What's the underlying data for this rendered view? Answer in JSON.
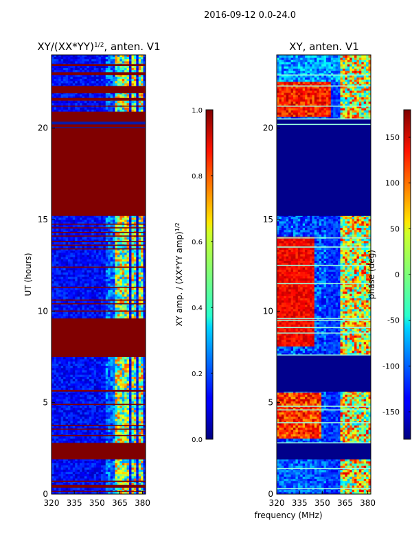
{
  "suptitle": "2016-09-12 0.0-24.0",
  "shared_xlabel": "frequency (MHz)",
  "colors": {
    "saturated": "#800000",
    "background_low": "#00008b",
    "blue": "#0000ff",
    "cyan": "#00e5ff",
    "yellow": "#ffff00",
    "red": "#ff0000"
  },
  "chart_data": [
    {
      "type": "heatmap",
      "title_main": "XY/(XX*YY)",
      "title_sup": "1/2",
      "title_tail": ", anten. V1",
      "xlabel": "",
      "ylabel": "UT (hours)",
      "xlim": [
        320,
        382
      ],
      "ylim": [
        0,
        24
      ],
      "xticks": [
        "320",
        "335",
        "350",
        "365",
        "380"
      ],
      "xtick_values": [
        320,
        335,
        350,
        365,
        380
      ],
      "yticks": [
        "0",
        "5",
        "10",
        "15",
        "20"
      ],
      "ytick_values": [
        0,
        5,
        10,
        15,
        20
      ],
      "colorbar": {
        "label_main": "XY amp. / (XX*YY amp)",
        "label_sup": "1/2",
        "range": [
          0.0,
          1.0
        ],
        "ticks": [
          "0.0",
          "0.2",
          "0.4",
          "0.6",
          "0.8",
          "1.0"
        ],
        "tick_values": [
          0.0,
          0.2,
          0.4,
          0.6,
          0.8,
          1.0
        ]
      },
      "saturated_ut_bands": [
        [
          0.35,
          0.5
        ],
        [
          1.9,
          2.8
        ],
        [
          5.6,
          5.7
        ],
        [
          7.5,
          7.6
        ],
        [
          7.6,
          9.6
        ],
        [
          15.2,
          20.0
        ],
        [
          20.05,
          20.2
        ],
        [
          20.35,
          20.9
        ],
        [
          21.5,
          21.65
        ],
        [
          21.9,
          22.3
        ],
        [
          22.9,
          23.05
        ],
        [
          23.4,
          23.5
        ]
      ],
      "thin_red_lines_ut": [
        0.15,
        0.7,
        3.2,
        3.55,
        3.75,
        4.9,
        7.85,
        8.4,
        8.7,
        9.25,
        10.0,
        10.4,
        10.6,
        11.3,
        12.4,
        13.4,
        13.6,
        13.8,
        14.1,
        14.3,
        14.55,
        14.75,
        21.2
      ],
      "bright_freq_columns_mhz": [
        [
          362,
          366
        ],
        [
          367,
          371
        ],
        [
          372,
          376
        ],
        [
          377,
          381
        ]
      ],
      "active_ut_ranges": [
        [
          0,
          0.35
        ],
        [
          0.5,
          1.9
        ],
        [
          2.8,
          5.6
        ],
        [
          5.7,
          7.5
        ],
        [
          9.6,
          15.2
        ],
        [
          20.9,
          24
        ]
      ]
    },
    {
      "type": "heatmap",
      "title_main": "XY, anten. V1",
      "xlabel": "frequency (MHz)",
      "ylabel": "",
      "xlim": [
        320,
        382
      ],
      "ylim": [
        0,
        24
      ],
      "xticks": [
        "320",
        "335",
        "350",
        "365",
        "380"
      ],
      "xtick_values": [
        320,
        335,
        350,
        365,
        380
      ],
      "yticks": [
        "0",
        "5",
        "10",
        "15",
        "20"
      ],
      "ytick_values": [
        0,
        5,
        10,
        15,
        20
      ],
      "colorbar": {
        "label_main": "phase (deg)",
        "range": [
          -180,
          180
        ],
        "ticks": [
          "-150",
          "-100",
          "-50",
          "0",
          "50",
          "100",
          "150"
        ],
        "tick_values": [
          -150,
          -100,
          -50,
          0,
          50,
          100,
          150
        ]
      },
      "dark_ut_bands": [
        [
          1.9,
          2.8
        ],
        [
          5.6,
          7.6
        ],
        [
          15.2,
          20.5
        ]
      ],
      "cyan_lines_ut": [
        0.3,
        1.4,
        2.8,
        3.9,
        4.6,
        4.8,
        7.6,
        8.8,
        9.1,
        9.5,
        9.6,
        11.5,
        12.5,
        13.5,
        14.0,
        20.2,
        20.5,
        21.2,
        22.3,
        22.9
      ],
      "active_ut_ranges": [
        [
          0,
          1.9
        ],
        [
          2.8,
          5.6
        ],
        [
          7.6,
          15.2
        ],
        [
          20.5,
          24
        ]
      ]
    }
  ]
}
